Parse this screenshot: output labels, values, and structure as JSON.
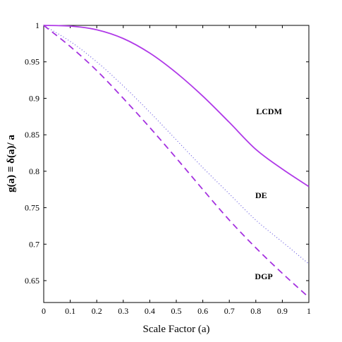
{
  "chart_data": {
    "type": "line",
    "xlabel": "Scale Factor (a)",
    "ylabel": "g(a) ≡  δ(a)/ a",
    "xlim": [
      0,
      1
    ],
    "ylim": [
      0.62,
      1.0
    ],
    "xticks": [
      0,
      0.1,
      0.2,
      0.3,
      0.4,
      0.5,
      0.6,
      0.7,
      0.8,
      0.9,
      1
    ],
    "xtick_labels": [
      "0",
      "0.1",
      "0.2",
      "0.3",
      "0.4",
      "0.5",
      "0.6",
      "0.7",
      "0.8",
      "0.9",
      "1"
    ],
    "yticks": [
      0.65,
      0.7,
      0.75,
      0.8,
      0.85,
      0.9,
      0.95,
      1
    ],
    "ytick_labels": [
      "0.65",
      "0.7",
      "0.75",
      "0.8",
      "0.85",
      "0.9",
      "0.95",
      "1"
    ],
    "grid": false,
    "legend": "none",
    "x": [
      0,
      0.1,
      0.2,
      0.3,
      0.4,
      0.5,
      0.6,
      0.7,
      0.8,
      0.9,
      1.0
    ],
    "series": [
      {
        "name": "LCDM",
        "style": "solid",
        "color": "#b03ae8",
        "values": [
          1.0,
          0.999,
          0.994,
          0.982,
          0.962,
          0.935,
          0.903,
          0.867,
          0.83,
          0.803,
          0.779
        ]
      },
      {
        "name": "DE",
        "style": "dotted",
        "color": "#6a5be0",
        "values": [
          1.0,
          0.978,
          0.95,
          0.917,
          0.881,
          0.843,
          0.805,
          0.769,
          0.733,
          0.703,
          0.673
        ]
      },
      {
        "name": "DGP",
        "style": "dashed",
        "color": "#a532e0",
        "values": [
          1.0,
          0.971,
          0.938,
          0.9,
          0.86,
          0.818,
          0.775,
          0.733,
          0.695,
          0.66,
          0.627
        ]
      }
    ],
    "annotations": [
      {
        "text": "LCDM",
        "x": 0.85,
        "y": 0.878
      },
      {
        "text": "DE",
        "x": 0.82,
        "y": 0.763
      },
      {
        "text": "DGP",
        "x": 0.83,
        "y": 0.652
      }
    ]
  }
}
